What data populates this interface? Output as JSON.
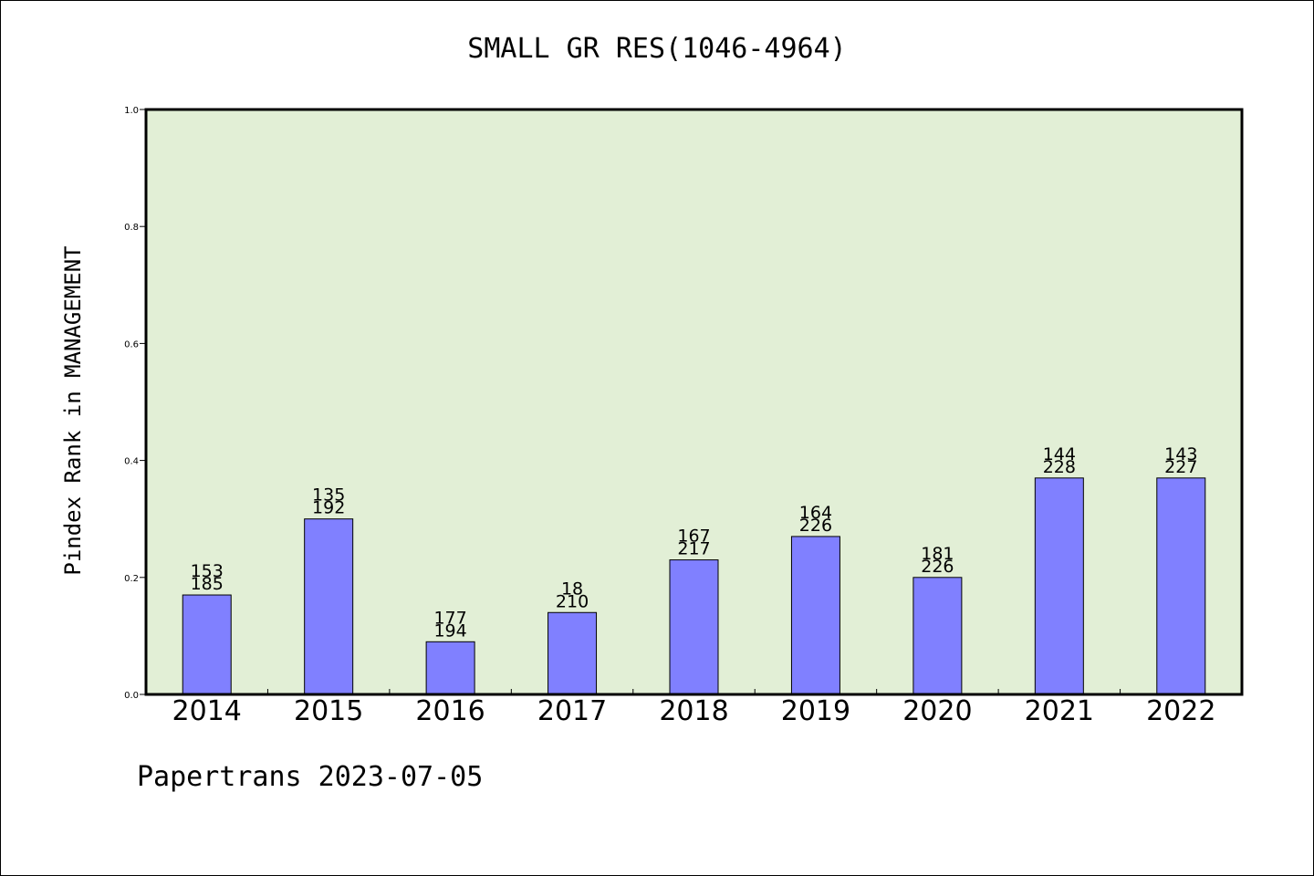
{
  "chart_data": {
    "type": "bar",
    "title": "SMALL GR RES(1046-4964)",
    "ylabel": "Pindex Rank in MANAGEMENT",
    "xlabel": "",
    "categories": [
      "2014",
      "2015",
      "2016",
      "2017",
      "2018",
      "2019",
      "2020",
      "2021",
      "2022"
    ],
    "values": [
      0.17,
      0.3,
      0.09,
      0.14,
      0.23,
      0.27,
      0.2,
      0.37,
      0.37
    ],
    "labels_top": [
      "153",
      "135",
      "177",
      "18",
      "167",
      "164",
      "181",
      "144",
      "143"
    ],
    "labels_bottom": [
      "185",
      "192",
      "194",
      "210",
      "217",
      "226",
      "226",
      "228",
      "227"
    ],
    "ylim": [
      0,
      1.0
    ],
    "yticks": [
      "0.0",
      "0.2",
      "0.4",
      "0.6",
      "0.8",
      "1.0"
    ],
    "grid": false,
    "colors": {
      "bar": "#8080ff",
      "plot_background": "#e2efd6"
    }
  },
  "footer": "Papertrans 2023-07-05"
}
